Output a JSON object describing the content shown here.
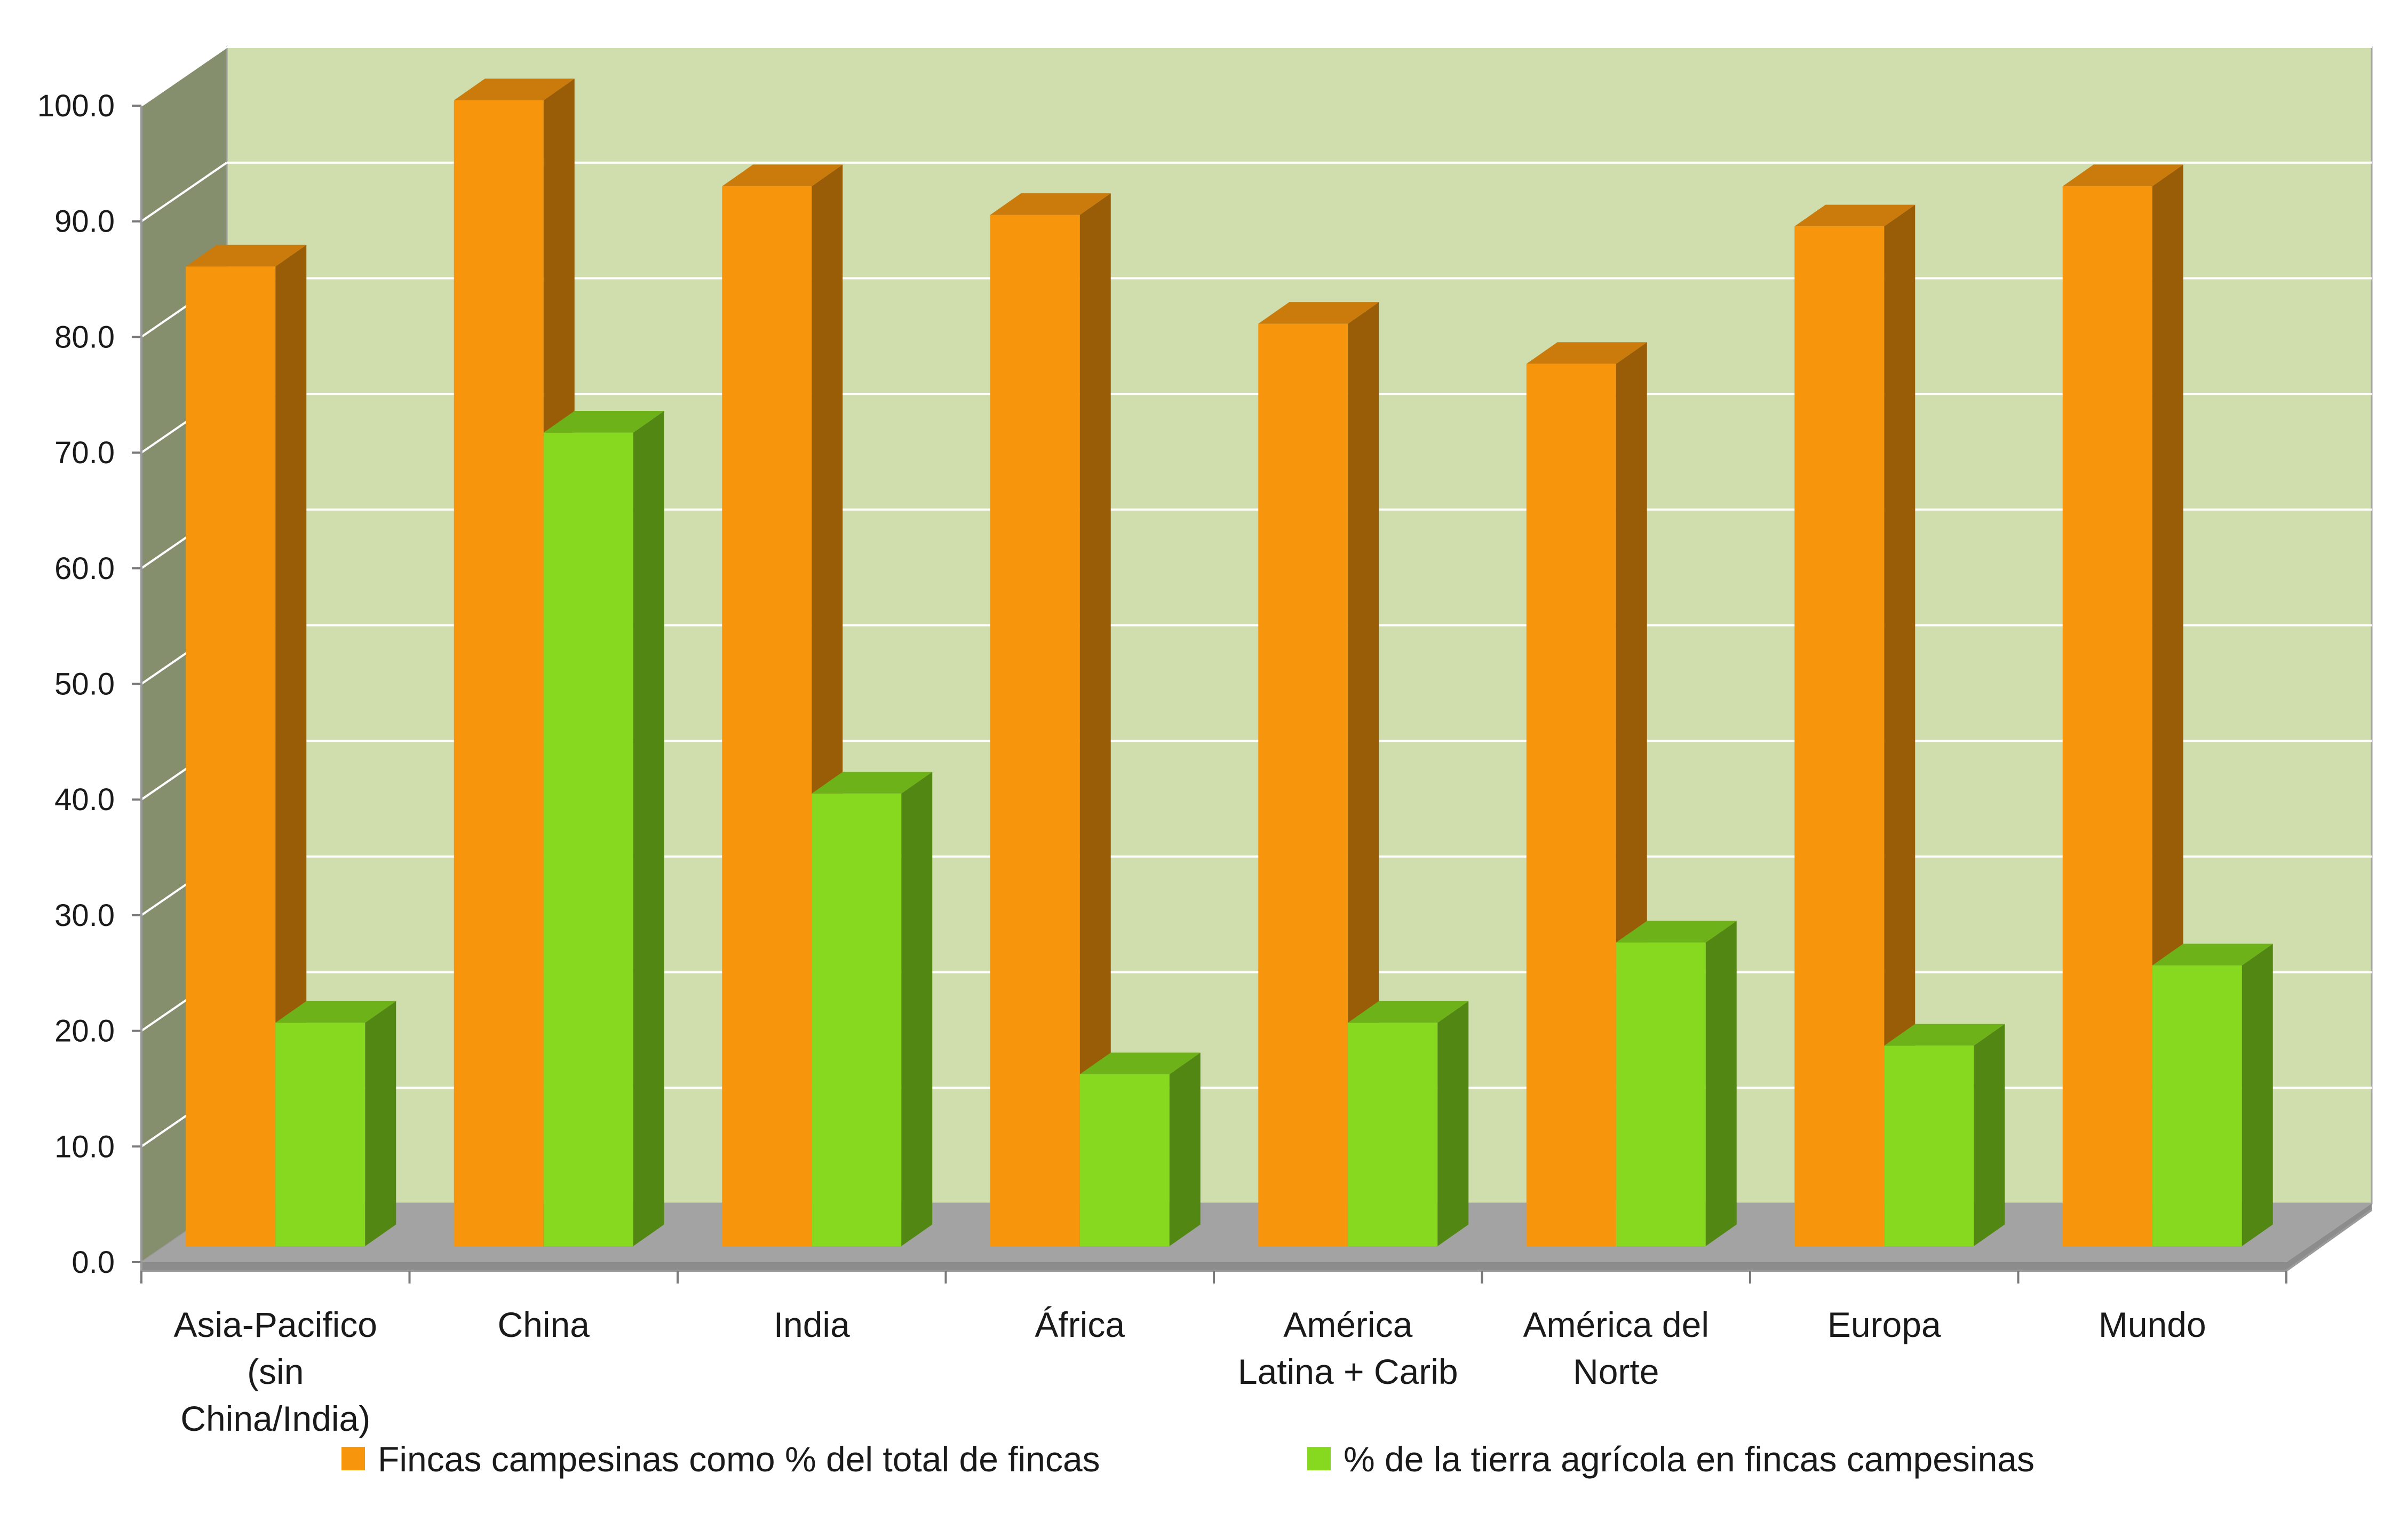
{
  "chart_data": {
    "type": "bar",
    "title": "",
    "xlabel": "",
    "ylabel": "",
    "ylim": [
      0,
      100
    ],
    "yticks": [
      "0.0",
      "10.0",
      "20.0",
      "30.0",
      "40.0",
      "50.0",
      "60.0",
      "70.0",
      "80.0",
      "90.0",
      "100.0"
    ],
    "grid": true,
    "legend_position": "bottom",
    "categories": [
      [
        "Asia-Pacifico",
        "(sin",
        "China/India)"
      ],
      [
        "China"
      ],
      [
        "India"
      ],
      [
        "África"
      ],
      [
        "América",
        "Latina + Carib"
      ],
      [
        "América del",
        "Norte"
      ],
      [
        "Europa"
      ],
      [
        "Mundo"
      ]
    ],
    "series": [
      {
        "name": "Fincas campesinas como % del total de fincas",
        "color": "#f7960d",
        "values": [
          85.5,
          100,
          92.5,
          90,
          80.5,
          77,
          89,
          92.5
        ]
      },
      {
        "name": "% de la tierra agrícola en fincas campesinas",
        "color": "#86d91e",
        "values": [
          19.5,
          71,
          39.5,
          15,
          19.5,
          26.5,
          17.5,
          24.5
        ]
      }
    ],
    "colors": {
      "wall": "#d0deae",
      "side_wall": "#858f6d",
      "floor": "#a3a3a3"
    }
  }
}
